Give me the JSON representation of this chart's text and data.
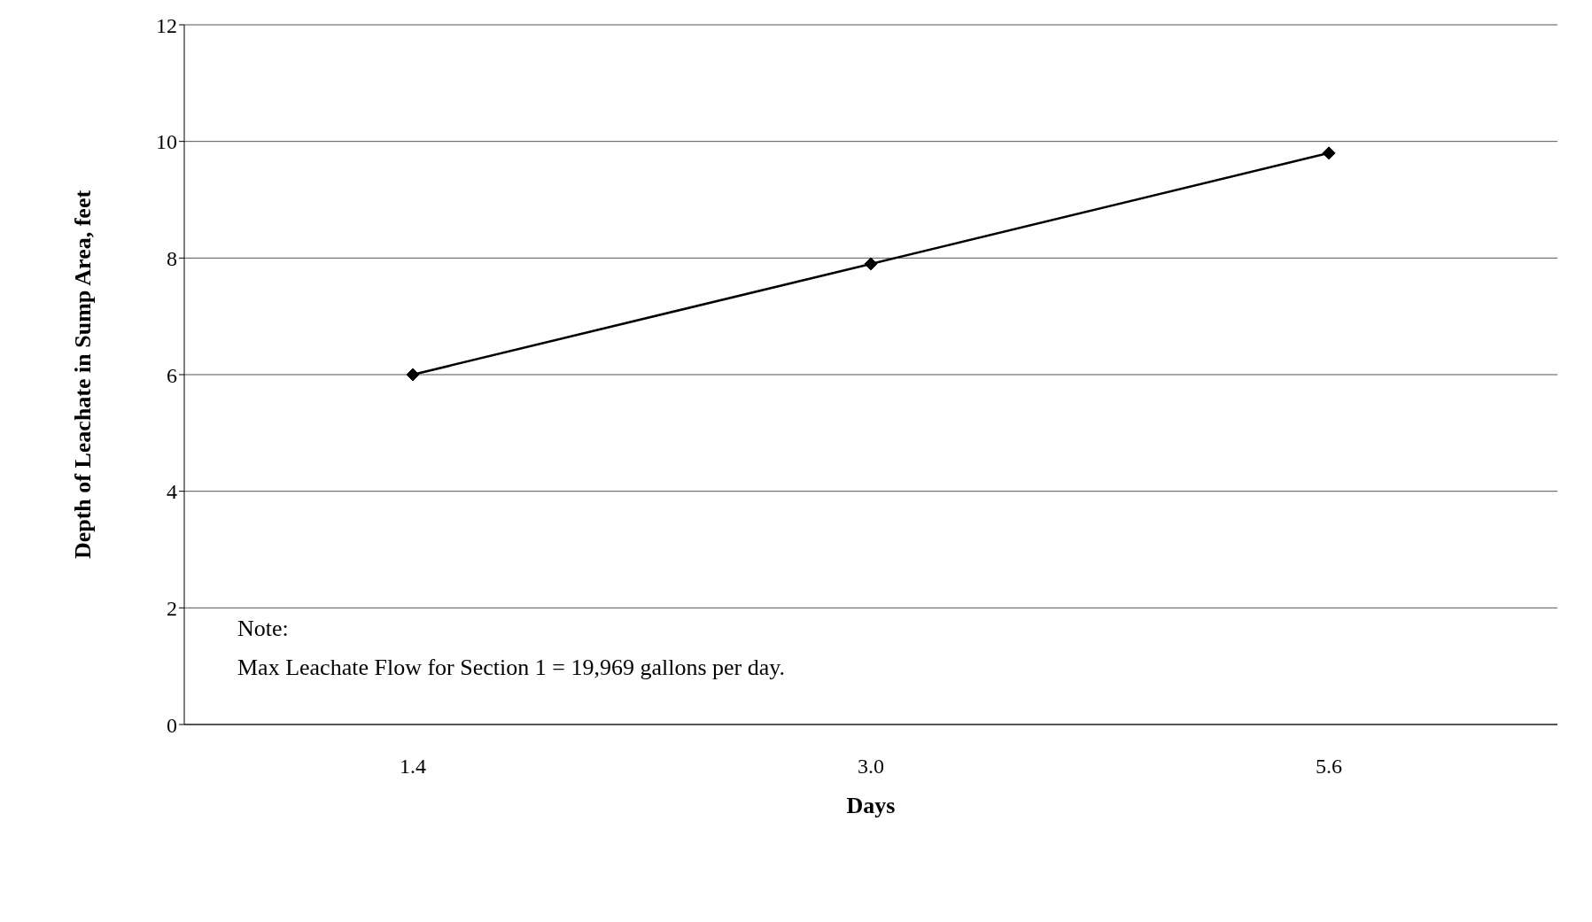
{
  "chart_data": {
    "type": "line",
    "xlabel": "Days",
    "ylabel": "Depth of Leachate in Sump Area, feet",
    "categories": [
      "1.4",
      "3.0",
      "5.6"
    ],
    "series": [
      {
        "color": "#000000",
        "values": [
          6.0,
          7.9,
          9.8
        ]
      }
    ],
    "ylim": [
      0,
      12
    ],
    "yticks": [
      0,
      2,
      4,
      6,
      8,
      10,
      12
    ],
    "grid": "y",
    "marker": "diamond",
    "line_style": "solid",
    "annotations": [
      "Note:",
      "Max Leachate Flow for Section 1 = 19,969 gallons per day."
    ]
  }
}
